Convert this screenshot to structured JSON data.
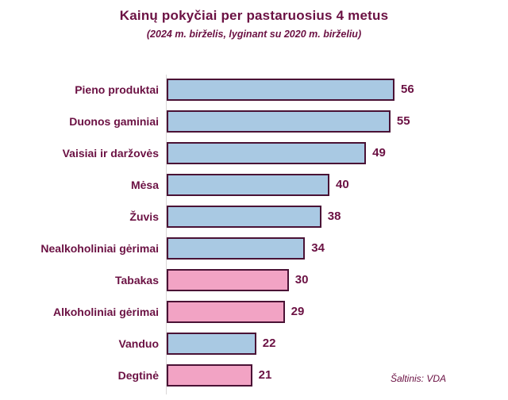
{
  "title": "Kainų pokyčiai per pastaruosius 4 metus",
  "subtitle": "(2024 m. birželis, lyginant su 2020 m. birželiu)",
  "source": "Šaltinis: VDA",
  "chart_data": {
    "type": "bar",
    "orientation": "horizontal",
    "title": "Kainų pokyčiai per pastaruosius 4 metus",
    "subtitle": "(2024 m. birželis, lyginant su 2020 m. birželiu)",
    "categories": [
      "Pieno produktai",
      "Duonos gaminiai",
      "Vaisiai ir daržovės",
      "Mėsa",
      "Žuvis",
      "Nealkoholiniai gėrimai",
      "Tabakas",
      "Alkoholiniai gėrimai",
      "Vanduo",
      "Degtinė"
    ],
    "values": [
      56,
      55,
      49,
      40,
      38,
      34,
      30,
      29,
      22,
      21
    ],
    "bar_groups": [
      "blue",
      "blue",
      "blue",
      "blue",
      "blue",
      "blue",
      "pink",
      "pink",
      "blue",
      "pink"
    ],
    "colors": {
      "blue_fill": "#A9C9E3",
      "pink_fill": "#F2A3C4",
      "bar_border": "#4A1235",
      "text": "#6B1143",
      "axis_line": "#D9D7D7"
    },
    "xlim": [
      0,
      56
    ],
    "value_labels": true,
    "grid": false,
    "legend": false,
    "annotations": [
      "Šaltinis: VDA"
    ]
  }
}
